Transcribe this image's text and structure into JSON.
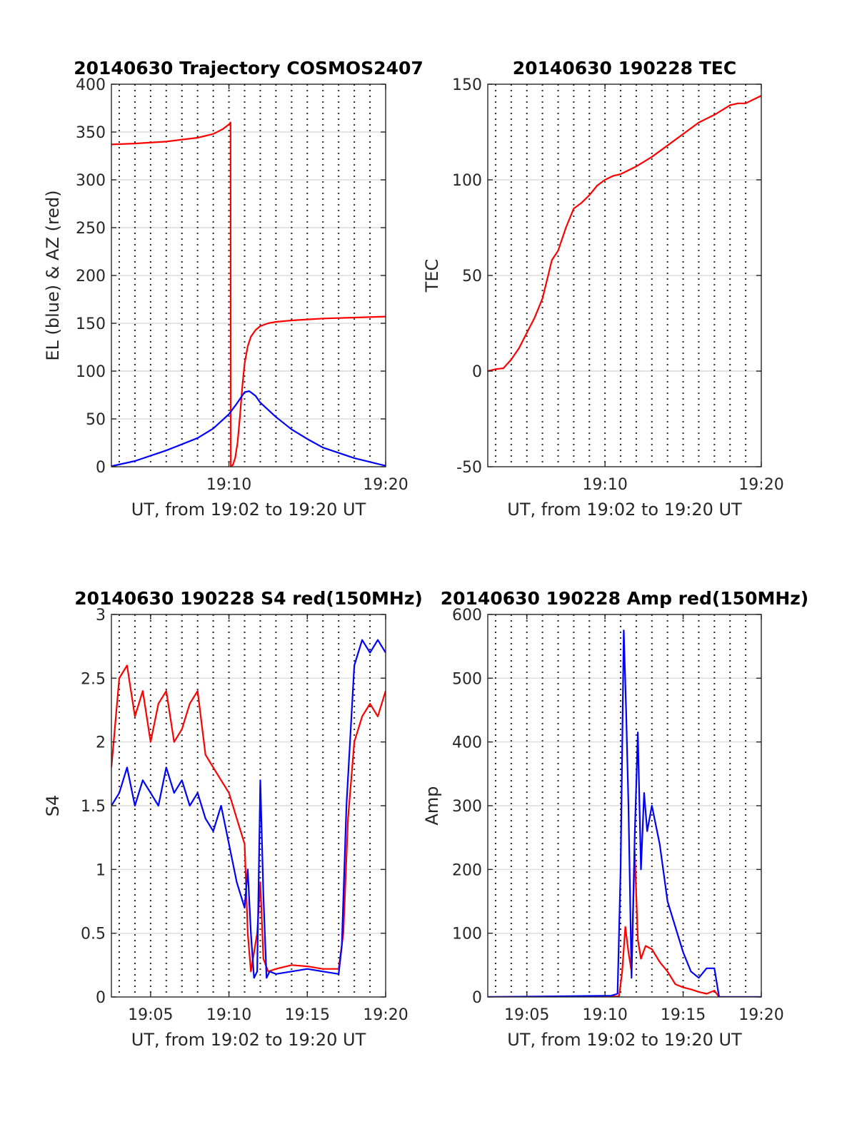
{
  "figure_texts": {},
  "chart_data": [
    {
      "type": "line",
      "title": "20140630 Trajectory COSMOS2407",
      "xlabel": "UT, from 19:02 to 19:20 UT",
      "ylabel": "EL (blue) & AZ (red)",
      "xlim": [
        2.5,
        20.0
      ],
      "ylim": [
        0,
        400
      ],
      "yticks": [
        0,
        50,
        100,
        150,
        200,
        250,
        300,
        350,
        400
      ],
      "xticks": [
        {
          "v": 10,
          "label": "19:10"
        },
        {
          "v": 20,
          "label": "19:20"
        }
      ],
      "grid": "on",
      "series": [
        {
          "color": "#ff0000",
          "x": [
            2.5,
            4,
            6,
            8,
            9,
            9.6,
            10.0,
            10.1,
            10.11,
            10.12,
            10.25,
            10.4,
            10.55,
            10.7,
            10.85,
            11.0,
            11.2,
            11.4,
            11.7,
            12.0,
            12.5,
            13.0,
            14.0,
            15.0,
            16.0,
            18.0,
            20.0
          ],
          "y": [
            337,
            338,
            340,
            344,
            348,
            353,
            358,
            360,
            182,
            0,
            2,
            9,
            25,
            52,
            83,
            108,
            126,
            136,
            143,
            147,
            150,
            151.5,
            153,
            154,
            155,
            156,
            157
          ]
        },
        {
          "color": "#0000ff",
          "x": [
            2.5,
            4,
            6,
            8,
            9,
            10,
            10.5,
            11.0,
            11.3,
            11.7,
            12,
            13,
            14,
            15,
            16,
            18,
            20
          ],
          "y": [
            0.5,
            6,
            17,
            30,
            40,
            55,
            66,
            78,
            79,
            74,
            67,
            52,
            39,
            29,
            20,
            9,
            1
          ]
        }
      ]
    },
    {
      "type": "line",
      "title": "20140630 190228 TEC",
      "xlabel": "UT, from 19:02 to 19:20 UT",
      "ylabel": "TEC",
      "xlim": [
        2.5,
        20.0
      ],
      "ylim": [
        -50,
        150
      ],
      "yticks": [
        -50,
        0,
        50,
        100,
        150
      ],
      "xticks": [
        {
          "v": 10,
          "label": "19:10"
        },
        {
          "v": 20,
          "label": "19:20"
        }
      ],
      "grid": "on",
      "series": [
        {
          "color": "#ff0000",
          "x": [
            2.5,
            3.0,
            3.5,
            4.0,
            4.5,
            5.0,
            5.5,
            6.0,
            6.3,
            6.6,
            7.0,
            7.5,
            8.0,
            8.5,
            9.0,
            9.5,
            10.0,
            10.5,
            11.0,
            11.5,
            12.0,
            13.0,
            14.0,
            15.0,
            16.0,
            17.0,
            18.0,
            18.5,
            19.0,
            19.5,
            20.0
          ],
          "y": [
            0,
            1,
            1.5,
            6,
            12,
            20,
            28,
            38,
            48,
            58,
            63,
            75,
            85,
            88,
            92,
            97,
            100,
            102,
            103,
            105,
            107,
            112,
            118,
            124,
            130,
            134,
            139,
            140,
            140,
            142,
            144
          ]
        }
      ]
    },
    {
      "type": "line",
      "title": "20140630 190228 S4 red(150MHz)",
      "xlabel": "UT, from 19:02 to 19:20 UT",
      "ylabel": "S4",
      "xlim": [
        2.5,
        20.0
      ],
      "ylim": [
        0,
        3
      ],
      "yticks": [
        0,
        0.5,
        1,
        1.5,
        2,
        2.5,
        3
      ],
      "xticks": [
        {
          "v": 5,
          "label": "19:05"
        },
        {
          "v": 10,
          "label": "19:10"
        },
        {
          "v": 15,
          "label": "19:15"
        },
        {
          "v": 20,
          "label": "19:20"
        }
      ],
      "grid": "on",
      "series": [
        {
          "color": "#ff0000",
          "x": [
            2.5,
            3.0,
            3.5,
            4.0,
            4.5,
            5.0,
            5.5,
            6.0,
            6.5,
            7.0,
            7.5,
            8.0,
            8.5,
            9.0,
            9.5,
            10.0,
            10.5,
            11.0,
            11.2,
            11.4,
            11.6,
            11.8,
            12.0,
            12.2,
            12.5,
            13.0,
            14.0,
            15.0,
            16.0,
            17.0,
            17.3,
            17.6,
            18.0,
            18.5,
            19.0,
            19.5,
            20.0
          ],
          "y": [
            1.8,
            2.5,
            2.6,
            2.2,
            2.4,
            2.0,
            2.3,
            2.4,
            2.0,
            2.1,
            2.3,
            2.4,
            1.9,
            1.8,
            1.7,
            1.6,
            1.4,
            1.2,
            0.5,
            0.2,
            0.35,
            0.5,
            0.9,
            0.3,
            0.2,
            0.22,
            0.25,
            0.24,
            0.22,
            0.22,
            0.5,
            1.4,
            2.0,
            2.2,
            2.3,
            2.2,
            2.4
          ]
        },
        {
          "color": "#0000ff",
          "x": [
            2.5,
            3.0,
            3.5,
            4.0,
            4.5,
            5.0,
            5.5,
            6.0,
            6.5,
            7.0,
            7.5,
            8.0,
            8.5,
            9.0,
            9.5,
            10.0,
            10.5,
            11.0,
            11.2,
            11.4,
            11.6,
            11.8,
            12.0,
            12.2,
            12.4,
            12.6,
            13.0,
            14.0,
            15.0,
            16.0,
            17.0,
            17.2,
            17.5,
            18.0,
            18.5,
            19.0,
            19.5,
            20.0
          ],
          "y": [
            1.5,
            1.6,
            1.8,
            1.5,
            1.7,
            1.6,
            1.5,
            1.8,
            1.6,
            1.7,
            1.5,
            1.6,
            1.4,
            1.3,
            1.5,
            1.2,
            0.9,
            0.7,
            1.0,
            0.5,
            0.15,
            0.2,
            1.7,
            0.8,
            0.15,
            0.2,
            0.18,
            0.2,
            0.22,
            0.2,
            0.18,
            0.4,
            1.5,
            2.6,
            2.8,
            2.7,
            2.8,
            2.7
          ]
        }
      ]
    },
    {
      "type": "line",
      "title": "20140630 190228 Amp red(150MHz)",
      "xlabel": "UT, from 19:02 to 19:20 UT",
      "ylabel": "Amp",
      "xlim": [
        2.5,
        20.0
      ],
      "ylim": [
        0,
        600
      ],
      "yticks": [
        0,
        100,
        200,
        300,
        400,
        500,
        600
      ],
      "xticks": [
        {
          "v": 5,
          "label": "19:05"
        },
        {
          "v": 10,
          "label": "19:10"
        },
        {
          "v": 15,
          "label": "19:15"
        },
        {
          "v": 20,
          "label": "19:20"
        }
      ],
      "grid": "on",
      "series": [
        {
          "color": "#ff0000",
          "x": [
            2.5,
            10.9,
            11.1,
            11.3,
            11.5,
            11.7,
            11.9,
            12.1,
            12.3,
            12.6,
            13.0,
            13.5,
            14.0,
            14.5,
            15.0,
            15.5,
            16.0,
            16.5,
            17.0,
            17.3,
            20.0
          ],
          "y": [
            0,
            1,
            40,
            110,
            70,
            40,
            230,
            90,
            60,
            80,
            75,
            55,
            40,
            20,
            15,
            12,
            8,
            5,
            10,
            0,
            0
          ]
        },
        {
          "color": "#0000ff",
          "x": [
            2.5,
            10.4,
            10.8,
            11.0,
            11.2,
            11.35,
            11.5,
            11.7,
            11.9,
            12.1,
            12.3,
            12.5,
            12.7,
            13.0,
            13.5,
            14.0,
            14.5,
            15.0,
            15.5,
            16.0,
            16.5,
            17.0,
            17.3,
            20.0
          ],
          "y": [
            0,
            2,
            5,
            200,
            575,
            450,
            300,
            30,
            250,
            415,
            200,
            320,
            260,
            300,
            240,
            150,
            110,
            70,
            40,
            30,
            45,
            45,
            0,
            0
          ]
        }
      ]
    }
  ]
}
